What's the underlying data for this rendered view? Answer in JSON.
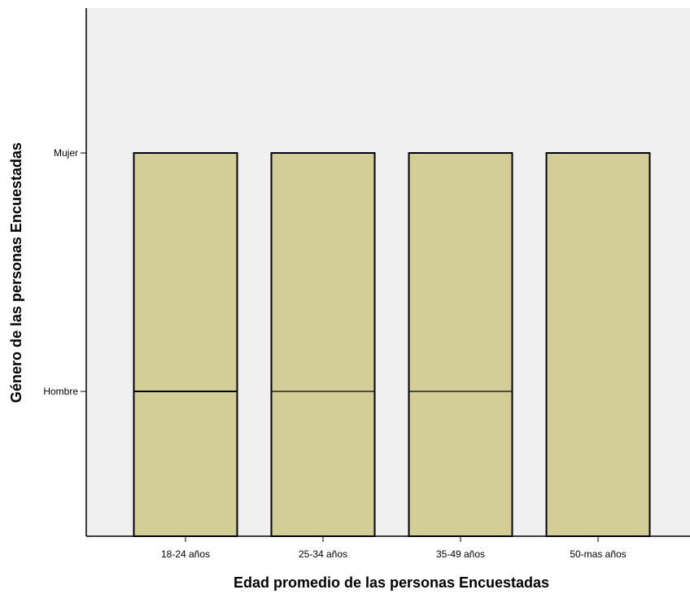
{
  "chart_data": {
    "type": "bar",
    "xlabel": "Edad promedio de las personas Encuestadas",
    "ylabel": "Género de las personas Encuestadas",
    "categories": [
      "18-24 años",
      "25-34 años",
      "35-49 años",
      "50-mas años"
    ],
    "y_categories": [
      "Hombre",
      "Mujer"
    ],
    "bars": [
      {
        "category": "18-24 años",
        "levels": [
          "Hombre",
          "Mujer"
        ]
      },
      {
        "category": "25-34 años",
        "levels": [
          "Hombre",
          "Mujer"
        ]
      },
      {
        "category": "35-49 años",
        "levels": [
          "Hombre",
          "Mujer"
        ]
      },
      {
        "category": "50-mas años",
        "levels": [
          "Mujer"
        ]
      }
    ],
    "grid": false,
    "colors": {
      "plot_background": "#f0f0f0",
      "bar_fill": "#d3cd98",
      "bar_stroke": "#000000"
    }
  }
}
